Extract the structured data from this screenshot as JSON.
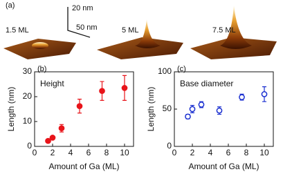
{
  "panel_a": {
    "label": "(a)",
    "samples": [
      "1.5 ML",
      "5 ML",
      "7.5 ML"
    ],
    "scale_z": "20 nm",
    "scale_xy": "50 nm"
  },
  "chart_data": [
    {
      "type": "scatter",
      "panel": "(b)",
      "annotation": "Height",
      "xlabel": "Amount of Ga (ML)",
      "ylabel": "Length (nm)",
      "x": [
        1.5,
        2,
        3,
        5,
        7.5,
        10
      ],
      "values": [
        2.2,
        3.5,
        7.3,
        16.2,
        22.3,
        23.5
      ],
      "errors": [
        0.5,
        0.5,
        1.5,
        2.8,
        3.8,
        5
      ],
      "color": "#e8141a",
      "filled": true,
      "xlim": [
        0,
        11
      ],
      "xticks": [
        0,
        2,
        4,
        6,
        8,
        10
      ],
      "ylim": [
        0,
        30
      ],
      "yticks": [
        0,
        10,
        20,
        30
      ]
    },
    {
      "type": "scatter",
      "panel": "(c)",
      "annotation": "Base diameter",
      "xlabel": "Amount of Ga (ML)",
      "ylabel": "Length (nm)",
      "x": [
        1.5,
        2,
        3,
        5,
        7.5,
        10
      ],
      "values": [
        40,
        50,
        56,
        48,
        66,
        70
      ],
      "errors": [
        3,
        5,
        4,
        5,
        4,
        10
      ],
      "color": "#1a2fd0",
      "filled": false,
      "xlim": [
        0,
        11
      ],
      "xticks": [
        0,
        2,
        4,
        6,
        8,
        10
      ],
      "ylim": [
        0,
        100
      ],
      "yticks": [
        0,
        50,
        100
      ]
    }
  ]
}
